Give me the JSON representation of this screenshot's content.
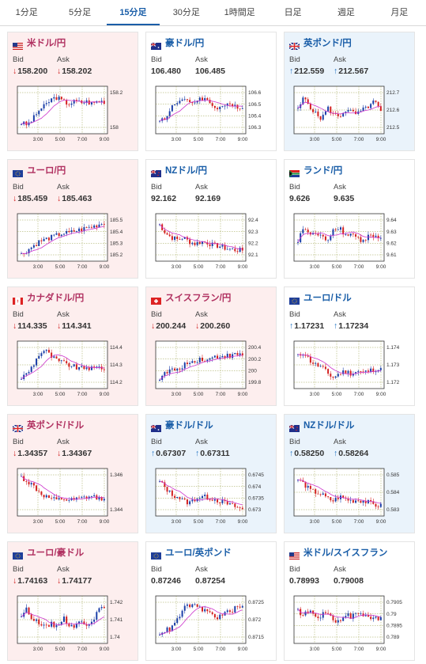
{
  "tabs": [
    {
      "label": "1分足",
      "active": false
    },
    {
      "label": "5分足",
      "active": false
    },
    {
      "label": "15分足",
      "active": true
    },
    {
      "label": "30分足",
      "active": false
    },
    {
      "label": "1時間足",
      "active": false
    },
    {
      "label": "日足",
      "active": false
    },
    {
      "label": "週足",
      "active": false
    },
    {
      "label": "月足",
      "active": false
    }
  ],
  "labels": {
    "bid": "Bid",
    "ask": "Ask"
  },
  "cards": [
    {
      "pair": "米ドル/円",
      "flag": "us",
      "trend": "down",
      "bid": "158.200",
      "ask": "158.202",
      "dir": "down",
      "yticks": [
        "158.2",
        "158"
      ],
      "xticks": [
        "3:00",
        "5:00",
        "7:00",
        "9:00"
      ]
    },
    {
      "pair": "豪ドル/円",
      "flag": "au",
      "trend": "flat",
      "bid": "106.480",
      "ask": "106.485",
      "dir": "",
      "yticks": [
        "106.6",
        "106.5",
        "106.4",
        "106.3"
      ],
      "xticks": [
        "3:00",
        "5:00",
        "7:00",
        "9:00"
      ]
    },
    {
      "pair": "英ポンド/円",
      "flag": "gb",
      "trend": "up",
      "bid": "212.559",
      "ask": "212.567",
      "dir": "up",
      "yticks": [
        "212.7",
        "212.6",
        "212.5"
      ],
      "xticks": [
        "3:00",
        "5:00",
        "7:00",
        "9:00"
      ]
    },
    {
      "pair": "ユーロ/円",
      "flag": "eu",
      "trend": "down",
      "bid": "185.459",
      "ask": "185.463",
      "dir": "down",
      "yticks": [
        "185.5",
        "185.4",
        "185.3",
        "185.2"
      ],
      "xticks": [
        "3:00",
        "5:00",
        "7:00",
        "9:00"
      ]
    },
    {
      "pair": "NZドル/円",
      "flag": "nz",
      "trend": "flat",
      "bid": "92.162",
      "ask": "92.169",
      "dir": "",
      "yticks": [
        "92.4",
        "92.3",
        "92.2",
        "92.1"
      ],
      "xticks": [
        "3:00",
        "5:00",
        "7:00",
        "9:00"
      ]
    },
    {
      "pair": "ランド/円",
      "flag": "za",
      "trend": "flat",
      "bid": "9.626",
      "ask": "9.635",
      "dir": "",
      "yticks": [
        "9.64",
        "9.63",
        "9.62",
        "9.61"
      ],
      "xticks": [
        "3:00",
        "5:00",
        "7:00",
        "9:00"
      ]
    },
    {
      "pair": "カナダドル/円",
      "flag": "ca",
      "trend": "down",
      "bid": "114.335",
      "ask": "114.341",
      "dir": "down",
      "yticks": [
        "114.4",
        "114.3",
        "114.2"
      ],
      "xticks": [
        "3:00",
        "5:00",
        "7:00",
        "9:00"
      ]
    },
    {
      "pair": "スイスフラン/円",
      "flag": "ch",
      "trend": "down",
      "bid": "200.244",
      "ask": "200.260",
      "dir": "down",
      "yticks": [
        "200.4",
        "200.2",
        "200",
        "199.8"
      ],
      "xticks": [
        "3:00",
        "5:00",
        "7:00",
        "9:00"
      ]
    },
    {
      "pair": "ユーロ/ドル",
      "flag": "eu",
      "trend": "flat",
      "bid": "1.17231",
      "ask": "1.17234",
      "dir": "up",
      "yticks": [
        "1.174",
        "1.173",
        "1.172"
      ],
      "xticks": [
        "3:00",
        "5:00",
        "7:00",
        "9:00"
      ]
    },
    {
      "pair": "英ポンド/ドル",
      "flag": "gb",
      "trend": "down",
      "bid": "1.34357",
      "ask": "1.34367",
      "dir": "down",
      "yticks": [
        "1.346",
        "1.344"
      ],
      "xticks": [
        "3:00",
        "5:00",
        "7:00",
        "9:00"
      ]
    },
    {
      "pair": "豪ドル/ドル",
      "flag": "au",
      "trend": "up",
      "bid": "0.67307",
      "ask": "0.67311",
      "dir": "up",
      "yticks": [
        "0.6745",
        "0.674",
        "0.6735",
        "0.673"
      ],
      "xticks": [
        "3:00",
        "5:00",
        "7:00",
        "9:00"
      ]
    },
    {
      "pair": "NZドル/ドル",
      "flag": "nz",
      "trend": "up",
      "bid": "0.58250",
      "ask": "0.58264",
      "dir": "up",
      "yticks": [
        "0.585",
        "0.584",
        "0.583"
      ],
      "xticks": [
        "3:00",
        "5:00",
        "7:00",
        "9:00"
      ]
    },
    {
      "pair": "ユーロ/豪ドル",
      "flag": "eu",
      "trend": "down",
      "bid": "1.74163",
      "ask": "1.74177",
      "dir": "down",
      "yticks": [
        "1.742",
        "1.741",
        "1.74"
      ],
      "xticks": [
        "3:00",
        "5:00",
        "7:00",
        "9:00"
      ]
    },
    {
      "pair": "ユーロ/英ポンド",
      "flag": "eu",
      "trend": "flat",
      "bid": "0.87246",
      "ask": "0.87254",
      "dir": "",
      "yticks": [
        "0.8725",
        "0.872",
        "0.8715"
      ],
      "xticks": [
        "3:00",
        "5:00",
        "7:00",
        "9:00"
      ]
    },
    {
      "pair": "米ドル/スイスフラン",
      "flag": "us",
      "trend": "flat",
      "bid": "0.78993",
      "ask": "0.79008",
      "dir": "",
      "yticks": [
        "0.7905",
        "0.79",
        "0.7895",
        "0.789"
      ],
      "xticks": [
        "3:00",
        "5:00",
        "7:00",
        "9:00"
      ]
    }
  ],
  "colors": {
    "bull": "#1a3ea8",
    "bear": "#d42020",
    "ma": "#cc33cc",
    "grid": "#9aa04a",
    "frame": "#333333"
  }
}
